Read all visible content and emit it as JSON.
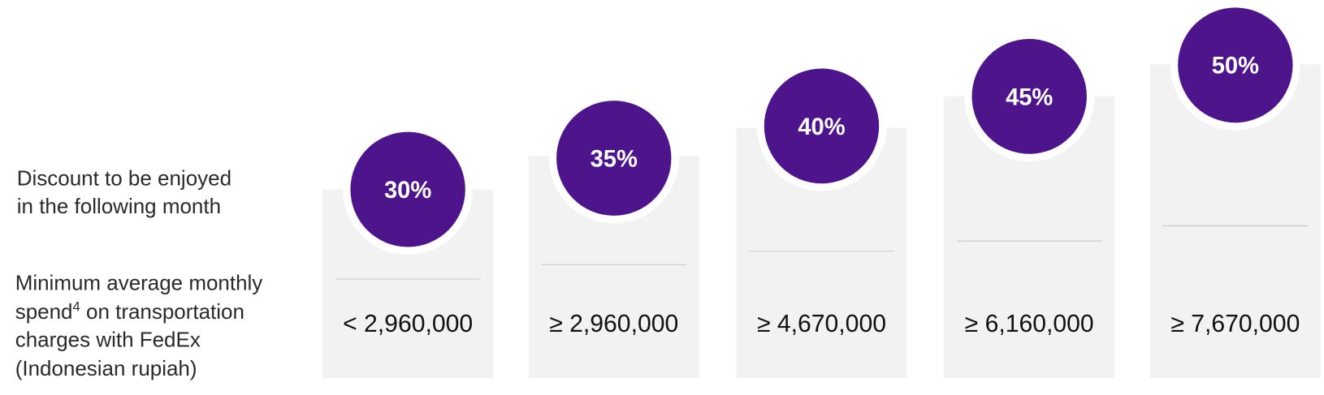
{
  "discount_label": {
    "lines": [
      "Discount to be enjoyed",
      "in the following month"
    ]
  },
  "spend_label": {
    "line1": "Minimum average monthly",
    "line2_start": "spend",
    "footnote": "4",
    "line2_end": "on transportation",
    "line3": "charges with FedEx",
    "line4": "(Indonesian rupiah)"
  },
  "tiers": [
    {
      "discount": "30%",
      "spend": "< 2,960,000"
    },
    {
      "discount": "35%",
      "spend": "≥ 2,960,000"
    },
    {
      "discount": "40%",
      "spend": "≥ 4,670,000"
    },
    {
      "discount": "45%",
      "spend": "≥ 6,160,000"
    },
    {
      "discount": "50%",
      "spend": "≥ 7,670,000"
    }
  ]
}
